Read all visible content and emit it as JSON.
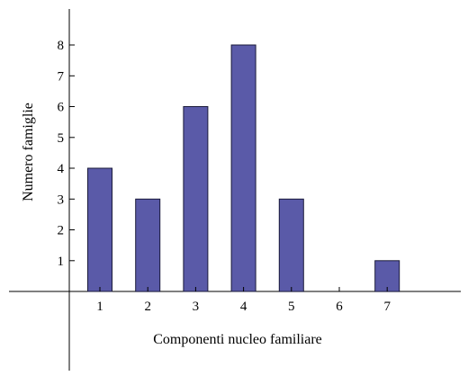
{
  "chart_data": {
    "type": "bar",
    "categories": [
      "1",
      "2",
      "3",
      "4",
      "5",
      "6",
      "7"
    ],
    "values": [
      4,
      3,
      6,
      8,
      3,
      0,
      1
    ],
    "title": "",
    "xlabel": "Componenti nucleo familiare",
    "ylabel": "Numero famiglie",
    "ylim": [
      0,
      8
    ],
    "y_ticks": [
      "1",
      "2",
      "3",
      "4",
      "5",
      "6",
      "7",
      "8"
    ],
    "grid": false,
    "legend": "none",
    "colors": {
      "bar": "#5a5aa8",
      "bar_edge": "#1a1a3a",
      "axis": "#000000"
    }
  }
}
